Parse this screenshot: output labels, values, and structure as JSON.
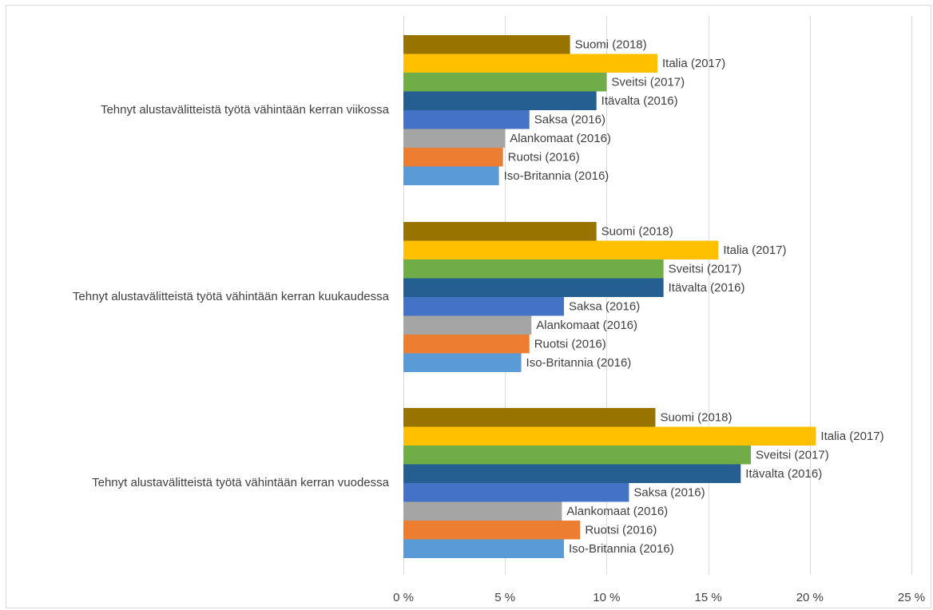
{
  "chart_data": {
    "type": "bar",
    "orientation": "horizontal",
    "title": "",
    "xlabel": "",
    "ylabel": "",
    "xlim": [
      0,
      25
    ],
    "x_ticks": [
      0,
      5,
      10,
      15,
      20,
      25
    ],
    "x_tick_labels": [
      "0 %",
      "5 %",
      "10 %",
      "15 %",
      "20 %",
      "25 %"
    ],
    "grid": "vertical",
    "legend": "none (series labels shown next to bars)",
    "categories": [
      "Tehnyt alustavälitteistä työtä vähintään kerran viikossa",
      "Tehnyt alustavälitteistä työtä vähintään kerran kuukaudessa",
      "Tehnyt alustavälitteistä työtä vähintään kerran vuodessa"
    ],
    "series": [
      {
        "name": "Suomi (2018)",
        "color": "#997300",
        "values": [
          8.2,
          9.5,
          12.4
        ]
      },
      {
        "name": "Italia (2017)",
        "color": "#ffc000",
        "values": [
          12.5,
          15.5,
          20.3
        ]
      },
      {
        "name": "Sveitsi (2017)",
        "color": "#70ad47",
        "values": [
          10.0,
          12.8,
          17.1
        ]
      },
      {
        "name": "Itävalta (2016)",
        "color": "#255e91",
        "values": [
          9.5,
          12.8,
          16.6
        ]
      },
      {
        "name": "Saksa (2016)",
        "color": "#4472c4",
        "values": [
          6.2,
          7.9,
          11.1
        ]
      },
      {
        "name": "Alankomaat (2016)",
        "color": "#a5a5a5",
        "values": [
          5.0,
          6.3,
          7.8
        ]
      },
      {
        "name": "Ruotsi (2016)",
        "color": "#ed7d31",
        "values": [
          4.9,
          6.2,
          8.7
        ]
      },
      {
        "name": "Iso-Britannia (2016)",
        "color": "#5b9bd5",
        "values": [
          4.7,
          5.8,
          7.9
        ]
      }
    ]
  }
}
